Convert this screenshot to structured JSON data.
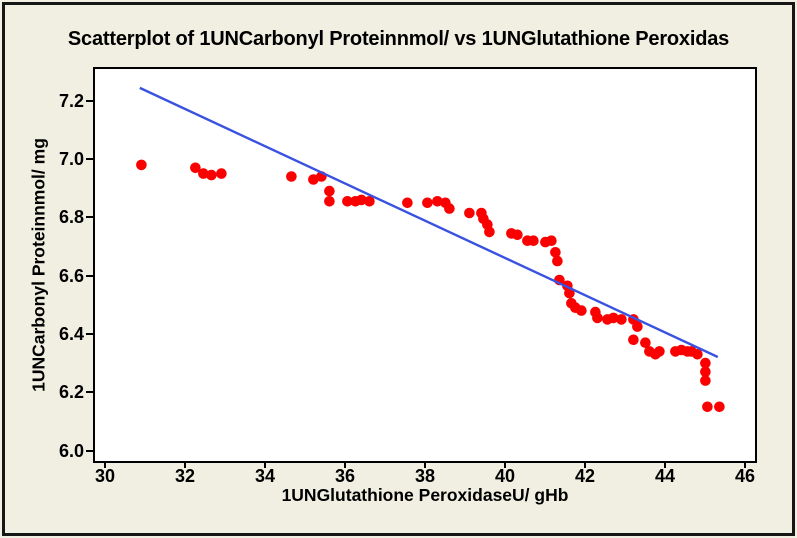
{
  "figure": {
    "background": "#F0EFE1",
    "plot_background": "#FFFFFF",
    "frame_color": "#161616"
  },
  "chart_data": {
    "type": "scatter",
    "title": "Scatterplot of 1UNCarbonyl Proteinnmol/ vs 1UNGlutathione Peroxidas",
    "xlabel": "1UNGlutathione PeroxidaseU/ gHb",
    "ylabel": "1UNCarbonyl Proteinnmol/ mg",
    "xlim": [
      29.74,
      46.24
    ],
    "ylim": [
      5.964,
      7.309
    ],
    "x_ticks": [
      "30",
      "32",
      "34",
      "36",
      "38",
      "40",
      "42",
      "44",
      "46"
    ],
    "y_ticks": [
      "6.0",
      "6.2",
      "6.4",
      "6.6",
      "6.8",
      "7.0",
      "7.2"
    ],
    "grid": false,
    "legend": "none",
    "point_color": "#FA0000",
    "trend_color": "#3A52E0",
    "trend_line": {
      "x1": 30.86,
      "y1": 7.244,
      "x2": 45.31,
      "y2": 6.321
    },
    "points": [
      [
        30.9,
        6.98
      ],
      [
        32.25,
        6.97
      ],
      [
        32.45,
        6.95
      ],
      [
        32.65,
        6.945
      ],
      [
        32.9,
        6.95
      ],
      [
        34.65,
        6.94
      ],
      [
        35.2,
        6.93
      ],
      [
        35.4,
        6.94
      ],
      [
        35.6,
        6.89
      ],
      [
        35.6,
        6.855
      ],
      [
        36.05,
        6.855
      ],
      [
        36.25,
        6.855
      ],
      [
        36.4,
        6.86
      ],
      [
        36.6,
        6.855
      ],
      [
        37.55,
        6.85
      ],
      [
        38.05,
        6.85
      ],
      [
        38.3,
        6.855
      ],
      [
        38.5,
        6.85
      ],
      [
        38.6,
        6.83
      ],
      [
        39.1,
        6.815
      ],
      [
        39.4,
        6.815
      ],
      [
        39.45,
        6.795
      ],
      [
        39.55,
        6.775
      ],
      [
        39.6,
        6.75
      ],
      [
        40.15,
        6.745
      ],
      [
        40.3,
        6.74
      ],
      [
        40.55,
        6.72
      ],
      [
        40.7,
        6.72
      ],
      [
        41.0,
        6.715
      ],
      [
        41.15,
        6.72
      ],
      [
        41.25,
        6.68
      ],
      [
        41.3,
        6.65
      ],
      [
        41.35,
        6.585
      ],
      [
        41.55,
        6.565
      ],
      [
        41.6,
        6.54
      ],
      [
        41.65,
        6.505
      ],
      [
        41.75,
        6.49
      ],
      [
        41.9,
        6.48
      ],
      [
        42.25,
        6.475
      ],
      [
        42.3,
        6.455
      ],
      [
        42.55,
        6.45
      ],
      [
        42.7,
        6.455
      ],
      [
        42.9,
        6.45
      ],
      [
        43.2,
        6.45
      ],
      [
        43.3,
        6.425
      ],
      [
        43.2,
        6.38
      ],
      [
        43.5,
        6.37
      ],
      [
        43.6,
        6.34
      ],
      [
        43.75,
        6.33
      ],
      [
        43.85,
        6.34
      ],
      [
        44.25,
        6.34
      ],
      [
        44.4,
        6.345
      ],
      [
        44.55,
        6.34
      ],
      [
        44.65,
        6.34
      ],
      [
        44.8,
        6.33
      ],
      [
        45.0,
        6.3
      ],
      [
        45.0,
        6.27
      ],
      [
        45.0,
        6.24
      ],
      [
        45.05,
        6.15
      ],
      [
        45.35,
        6.15
      ]
    ]
  }
}
